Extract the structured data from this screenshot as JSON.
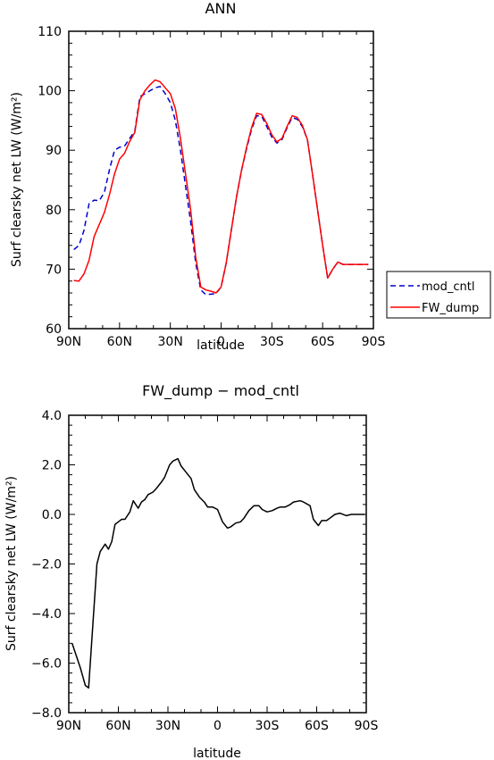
{
  "chart_data": [
    {
      "type": "line",
      "title": "ANN",
      "xlabel": "latitude",
      "ylabel": "Surf clearsky net LW (W/m²)",
      "xlim": [
        90,
        -90
      ],
      "ylim": [
        60,
        110
      ],
      "xtick_labels": [
        "90N",
        "60N",
        "30N",
        "0",
        "30S",
        "60S",
        "90S"
      ],
      "xtick_values": [
        90,
        60,
        30,
        0,
        -30,
        -60,
        -90
      ],
      "ytick_labels": [
        "60",
        "70",
        "80",
        "90",
        "100",
        "110"
      ],
      "ytick_values": [
        60,
        70,
        80,
        90,
        100,
        110
      ],
      "legend_position": "right-outside",
      "series": [
        {
          "name": "mod_cntl",
          "color": "#0000cc",
          "dash": "dashed",
          "x": [
            87,
            84,
            81,
            78,
            75,
            72,
            69,
            66,
            63,
            60,
            57,
            54,
            51,
            48,
            45,
            42,
            39,
            36,
            33,
            30,
            27,
            24,
            21,
            18,
            15,
            12,
            9,
            6,
            3,
            0,
            -3,
            -6,
            -9,
            -12,
            -15,
            -18,
            -21,
            -24,
            -27,
            -30,
            -33,
            -36,
            -39,
            -42,
            -45,
            -48,
            -51,
            -54,
            -57,
            -60,
            -63,
            -66,
            -69,
            -72,
            -75,
            -78,
            -81,
            -84,
            -87
          ],
          "y": [
            73.3,
            74.0,
            76.5,
            81.0,
            81.6,
            81.5,
            82.9,
            86.7,
            90.0,
            90.5,
            90.7,
            92.0,
            93.2,
            99.0,
            99.5,
            100.0,
            100.5,
            100.7,
            99.5,
            98.0,
            95.0,
            90.0,
            84.0,
            78.0,
            71.0,
            66.5,
            65.7,
            65.8,
            65.9,
            67.0,
            71.0,
            76.5,
            82.0,
            86.5,
            90.2,
            93.5,
            95.8,
            95.7,
            94.0,
            92.2,
            91.2,
            91.8,
            93.8,
            95.5,
            95.2,
            94.0,
            91.8,
            86.0,
            80.0,
            74.0,
            68.5,
            70.0,
            71.2,
            70.8,
            70.8,
            70.8,
            70.8,
            70.8,
            70.8
          ]
        },
        {
          "name": "FW_dump",
          "color": "#ff0000",
          "dash": "solid",
          "x": [
            87,
            84,
            81,
            78,
            75,
            72,
            69,
            66,
            63,
            60,
            57,
            54,
            51,
            48,
            45,
            42,
            39,
            36,
            33,
            30,
            27,
            24,
            21,
            18,
            15,
            12,
            9,
            6,
            3,
            0,
            -3,
            -6,
            -9,
            -12,
            -15,
            -18,
            -21,
            -24,
            -27,
            -30,
            -33,
            -36,
            -39,
            -42,
            -45,
            -48,
            -51,
            -54,
            -57,
            -60,
            -63,
            -66,
            -69,
            -72,
            -75,
            -78,
            -81,
            -84,
            -87
          ],
          "y": [
            68.1,
            68.0,
            69.2,
            71.5,
            75.5,
            77.5,
            79.5,
            82.5,
            86.0,
            88.5,
            89.5,
            91.5,
            93.0,
            98.5,
            100.0,
            101.0,
            101.8,
            101.5,
            100.5,
            99.5,
            97.0,
            92.0,
            86.0,
            80.0,
            72.0,
            67.0,
            66.5,
            66.3,
            66.0,
            67.0,
            71.0,
            76.5,
            82.0,
            86.5,
            90.4,
            93.8,
            96.2,
            96.0,
            94.5,
            92.6,
            91.4,
            92.0,
            94.0,
            95.8,
            95.5,
            94.2,
            91.8,
            86.0,
            80.0,
            74.0,
            68.5,
            70.0,
            71.2,
            70.8,
            70.8,
            70.8,
            70.8,
            70.8,
            70.8
          ]
        }
      ]
    },
    {
      "type": "line",
      "title": "FW_dump − mod_cntl",
      "xlabel": "latitude",
      "ylabel": "Surf clearsky net LW (W/m²)",
      "xlim": [
        90,
        -90
      ],
      "ylim": [
        -8.0,
        4.0
      ],
      "xtick_labels": [
        "90N",
        "60N",
        "30N",
        "0",
        "30S",
        "60S",
        "90S"
      ],
      "xtick_values": [
        90,
        60,
        30,
        0,
        -30,
        -60,
        -90
      ],
      "ytick_labels": [
        "−8.0",
        "−6.0",
        "−4.0",
        "−2.0",
        "0.0",
        "2.0",
        "4.0"
      ],
      "ytick_values": [
        -8.0,
        -6.0,
        -4.0,
        -2.0,
        0.0,
        2.0,
        4.0
      ],
      "series": [
        {
          "color": "#000000",
          "dash": "solid",
          "x": [
            88,
            83,
            80,
            78,
            73,
            71,
            68,
            66,
            64,
            62,
            60,
            58,
            56,
            53,
            51,
            48,
            46,
            44,
            42,
            39,
            37,
            34,
            32,
            29,
            27,
            24,
            22,
            19,
            16,
            14,
            11,
            8,
            6,
            3,
            0,
            -3,
            -6,
            -8,
            -11,
            -14,
            -16,
            -19,
            -22,
            -25,
            -27,
            -30,
            -33,
            -36,
            -38,
            -41,
            -44,
            -46,
            -50,
            -52,
            -56,
            -58,
            -61,
            -63,
            -66,
            -68,
            -71,
            -74,
            -78,
            -81,
            -84,
            -87,
            -89
          ],
          "y": [
            -5.2,
            -6.2,
            -6.9,
            -7.0,
            -2.0,
            -1.5,
            -1.2,
            -1.4,
            -1.1,
            -0.4,
            -0.3,
            -0.2,
            -0.2,
            0.1,
            0.55,
            0.25,
            0.5,
            0.6,
            0.8,
            0.9,
            1.05,
            1.3,
            1.5,
            2.0,
            2.15,
            2.25,
            1.95,
            1.7,
            1.45,
            1.0,
            0.7,
            0.5,
            0.3,
            0.3,
            0.2,
            -0.3,
            -0.55,
            -0.5,
            -0.35,
            -0.3,
            -0.15,
            0.15,
            0.35,
            0.35,
            0.2,
            0.1,
            0.15,
            0.25,
            0.3,
            0.3,
            0.4,
            0.5,
            0.55,
            0.5,
            0.35,
            -0.2,
            -0.45,
            -0.25,
            -0.25,
            -0.15,
            0.0,
            0.05,
            -0.05,
            0.0,
            0.0,
            0.0,
            0.0
          ]
        }
      ]
    }
  ]
}
